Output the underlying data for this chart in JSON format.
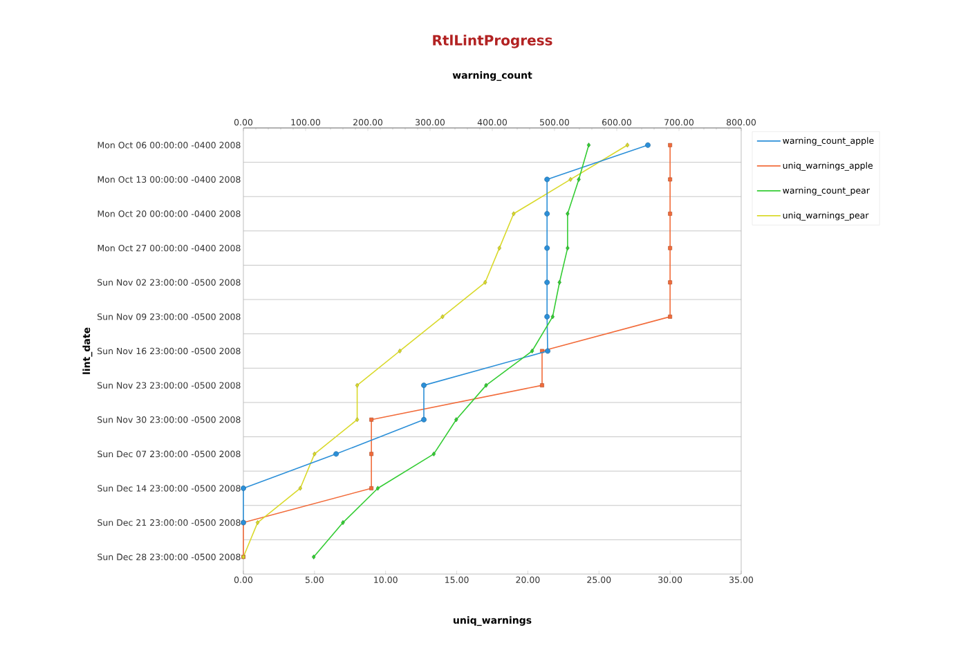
{
  "chart_data": {
    "type": "line",
    "title": "RtlLintProgress",
    "orientation": "horizontal",
    "xlabel": "uniq_warnings",
    "x2label": "warning_count",
    "ylabel": "lint_date",
    "categories": [
      "Mon Oct 06 00:00:00 -0400 2008",
      "Mon Oct 13 00:00:00 -0400 2008",
      "Mon Oct 20 00:00:00 -0400 2008",
      "Mon Oct 27 00:00:00 -0400 2008",
      "Sun Nov 02 23:00:00 -0500 2008",
      "Sun Nov 09 23:00:00 -0500 2008",
      "Sun Nov 16 23:00:00 -0500 2008",
      "Sun Nov 23 23:00:00 -0500 2008",
      "Sun Nov 30 23:00:00 -0500 2008",
      "Sun Dec 07 23:00:00 -0500 2008",
      "Sun Dec 14 23:00:00 -0500 2008",
      "Sun Dec 21 23:00:00 -0500 2008",
      "Sun Dec 28 23:00:00 -0500 2008"
    ],
    "xlim": [
      0,
      35
    ],
    "xticks": [
      {
        "value": 0,
        "label": "0.00"
      },
      {
        "value": 5,
        "label": "5.00"
      },
      {
        "value": 10,
        "label": "10.00"
      },
      {
        "value": 15,
        "label": "15.00"
      },
      {
        "value": 20,
        "label": "20.00"
      },
      {
        "value": 25,
        "label": "25.00"
      },
      {
        "value": 30,
        "label": "30.00"
      },
      {
        "value": 35,
        "label": "35.00"
      }
    ],
    "x2lim": [
      0,
      800
    ],
    "x2ticks": [
      {
        "value": 0,
        "label": "0.00"
      },
      {
        "value": 100,
        "label": "100.00"
      },
      {
        "value": 200,
        "label": "200.00"
      },
      {
        "value": 300,
        "label": "300.00"
      },
      {
        "value": 400,
        "label": "400.00"
      },
      {
        "value": 500,
        "label": "500.00"
      },
      {
        "value": 600,
        "label": "600.00"
      },
      {
        "value": 700,
        "label": "700.00"
      },
      {
        "value": 800,
        "label": "800.00"
      }
    ],
    "grid": "y",
    "legend": "top right",
    "line_style": "solid",
    "series": [
      {
        "name": "warning_count_apple",
        "color": "#2b8fd8",
        "axis": "x2",
        "marker": "circle",
        "values": [
          650,
          488,
          488,
          488,
          488,
          488,
          489,
          290,
          290,
          149,
          0,
          0,
          null
        ]
      },
      {
        "name": "uniq_warnings_apple",
        "color": "#f26b3a",
        "marker": "square",
        "values": [
          30,
          30,
          30,
          30,
          30,
          30,
          21,
          21,
          9,
          9,
          9,
          0,
          0
        ]
      },
      {
        "name": "warning_count_pear",
        "color": "#33cc33",
        "axis": "x2",
        "marker": "diamond",
        "values": [
          555,
          539,
          521,
          521,
          508,
          497,
          464,
          390,
          342,
          306,
          216,
          160,
          113
        ]
      },
      {
        "name": "uniq_warnings_pear",
        "color": "#d9d92b",
        "marker": "diamond",
        "values": [
          27,
          23,
          19,
          18,
          17,
          14,
          11,
          8,
          8,
          5,
          4,
          1,
          0
        ]
      }
    ]
  }
}
